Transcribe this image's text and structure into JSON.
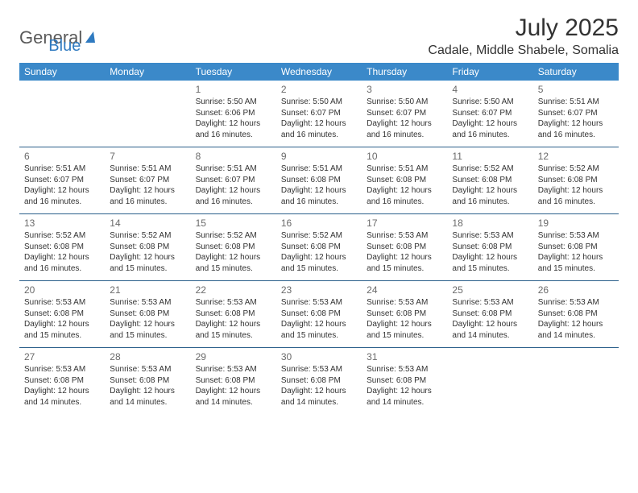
{
  "brand": {
    "word1": "General",
    "word2": "Blue"
  },
  "title": "July 2025",
  "location": "Cadale, Middle Shabele, Somalia",
  "colors": {
    "header_bg": "#3b89c9",
    "header_text": "#ffffff",
    "rule": "#2a5f8a",
    "body_text": "#323232",
    "daynum": "#6a6a6a",
    "brand_gray": "#5a5a5a",
    "brand_blue": "#2f7ac0"
  },
  "weekdays": [
    "Sunday",
    "Monday",
    "Tuesday",
    "Wednesday",
    "Thursday",
    "Friday",
    "Saturday"
  ],
  "weeks": [
    [
      null,
      null,
      {
        "d": "1",
        "sr": "5:50 AM",
        "ss": "6:06 PM",
        "dl": "12 hours and 16 minutes."
      },
      {
        "d": "2",
        "sr": "5:50 AM",
        "ss": "6:07 PM",
        "dl": "12 hours and 16 minutes."
      },
      {
        "d": "3",
        "sr": "5:50 AM",
        "ss": "6:07 PM",
        "dl": "12 hours and 16 minutes."
      },
      {
        "d": "4",
        "sr": "5:50 AM",
        "ss": "6:07 PM",
        "dl": "12 hours and 16 minutes."
      },
      {
        "d": "5",
        "sr": "5:51 AM",
        "ss": "6:07 PM",
        "dl": "12 hours and 16 minutes."
      }
    ],
    [
      {
        "d": "6",
        "sr": "5:51 AM",
        "ss": "6:07 PM",
        "dl": "12 hours and 16 minutes."
      },
      {
        "d": "7",
        "sr": "5:51 AM",
        "ss": "6:07 PM",
        "dl": "12 hours and 16 minutes."
      },
      {
        "d": "8",
        "sr": "5:51 AM",
        "ss": "6:07 PM",
        "dl": "12 hours and 16 minutes."
      },
      {
        "d": "9",
        "sr": "5:51 AM",
        "ss": "6:08 PM",
        "dl": "12 hours and 16 minutes."
      },
      {
        "d": "10",
        "sr": "5:51 AM",
        "ss": "6:08 PM",
        "dl": "12 hours and 16 minutes."
      },
      {
        "d": "11",
        "sr": "5:52 AM",
        "ss": "6:08 PM",
        "dl": "12 hours and 16 minutes."
      },
      {
        "d": "12",
        "sr": "5:52 AM",
        "ss": "6:08 PM",
        "dl": "12 hours and 16 minutes."
      }
    ],
    [
      {
        "d": "13",
        "sr": "5:52 AM",
        "ss": "6:08 PM",
        "dl": "12 hours and 16 minutes."
      },
      {
        "d": "14",
        "sr": "5:52 AM",
        "ss": "6:08 PM",
        "dl": "12 hours and 15 minutes."
      },
      {
        "d": "15",
        "sr": "5:52 AM",
        "ss": "6:08 PM",
        "dl": "12 hours and 15 minutes."
      },
      {
        "d": "16",
        "sr": "5:52 AM",
        "ss": "6:08 PM",
        "dl": "12 hours and 15 minutes."
      },
      {
        "d": "17",
        "sr": "5:53 AM",
        "ss": "6:08 PM",
        "dl": "12 hours and 15 minutes."
      },
      {
        "d": "18",
        "sr": "5:53 AM",
        "ss": "6:08 PM",
        "dl": "12 hours and 15 minutes."
      },
      {
        "d": "19",
        "sr": "5:53 AM",
        "ss": "6:08 PM",
        "dl": "12 hours and 15 minutes."
      }
    ],
    [
      {
        "d": "20",
        "sr": "5:53 AM",
        "ss": "6:08 PM",
        "dl": "12 hours and 15 minutes."
      },
      {
        "d": "21",
        "sr": "5:53 AM",
        "ss": "6:08 PM",
        "dl": "12 hours and 15 minutes."
      },
      {
        "d": "22",
        "sr": "5:53 AM",
        "ss": "6:08 PM",
        "dl": "12 hours and 15 minutes."
      },
      {
        "d": "23",
        "sr": "5:53 AM",
        "ss": "6:08 PM",
        "dl": "12 hours and 15 minutes."
      },
      {
        "d": "24",
        "sr": "5:53 AM",
        "ss": "6:08 PM",
        "dl": "12 hours and 15 minutes."
      },
      {
        "d": "25",
        "sr": "5:53 AM",
        "ss": "6:08 PM",
        "dl": "12 hours and 14 minutes."
      },
      {
        "d": "26",
        "sr": "5:53 AM",
        "ss": "6:08 PM",
        "dl": "12 hours and 14 minutes."
      }
    ],
    [
      {
        "d": "27",
        "sr": "5:53 AM",
        "ss": "6:08 PM",
        "dl": "12 hours and 14 minutes."
      },
      {
        "d": "28",
        "sr": "5:53 AM",
        "ss": "6:08 PM",
        "dl": "12 hours and 14 minutes."
      },
      {
        "d": "29",
        "sr": "5:53 AM",
        "ss": "6:08 PM",
        "dl": "12 hours and 14 minutes."
      },
      {
        "d": "30",
        "sr": "5:53 AM",
        "ss": "6:08 PM",
        "dl": "12 hours and 14 minutes."
      },
      {
        "d": "31",
        "sr": "5:53 AM",
        "ss": "6:08 PM",
        "dl": "12 hours and 14 minutes."
      },
      null,
      null
    ]
  ],
  "labels": {
    "sunrise": "Sunrise:",
    "sunset": "Sunset:",
    "daylight": "Daylight:"
  }
}
